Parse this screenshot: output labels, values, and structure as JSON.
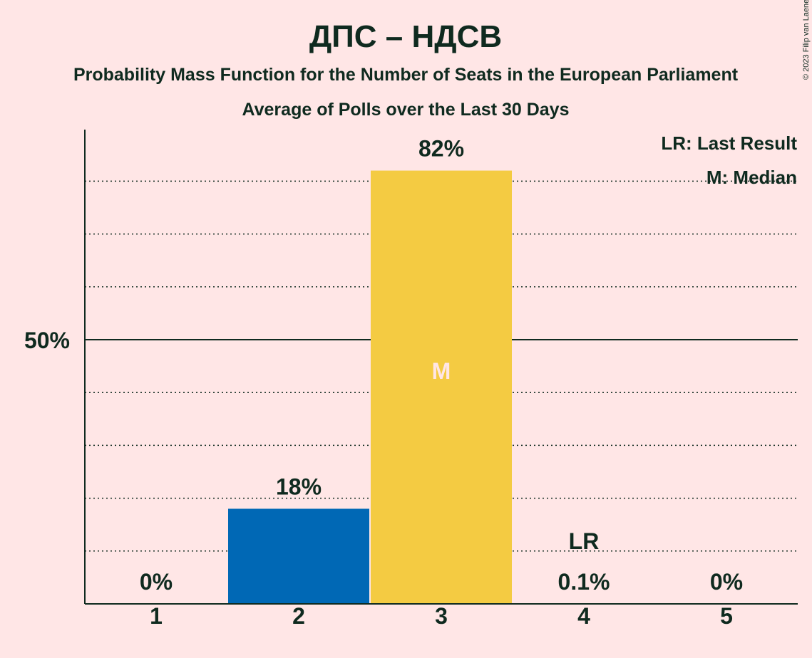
{
  "chart_data": {
    "type": "bar",
    "title": "ДПС – НДСВ",
    "subtitle": "Probability Mass Function for the Number of Seats in the European Parliament",
    "subtitle2": "Average of Polls over the Last 30 Days",
    "categories": [
      "1",
      "2",
      "3",
      "4",
      "5"
    ],
    "values": [
      0,
      18,
      82,
      0.1,
      0
    ],
    "value_labels": [
      "0%",
      "18%",
      "82%",
      "0.1%",
      "0%"
    ],
    "bar_colors": [
      "#0068B5",
      "#0068B5",
      "#F4CB42",
      "#0068B5",
      "#0068B5"
    ],
    "ylim": [
      0,
      90
    ],
    "ytick_major": 50,
    "ytick_major_label": "50%",
    "grid_minor_values": [
      10,
      20,
      30,
      40,
      60,
      70,
      80
    ],
    "median_category": "3",
    "median_marker": "M",
    "last_result_category": "4",
    "last_result_marker": "LR",
    "legend": [
      "LR: Last Result",
      "M: Median"
    ],
    "legend_position": "top-right",
    "copyright": "© 2023 Filip van Laenen",
    "colors": {
      "background": "#FFE6E6",
      "text": "#0F2A1F",
      "median_marker": "#FFE6E6"
    }
  }
}
